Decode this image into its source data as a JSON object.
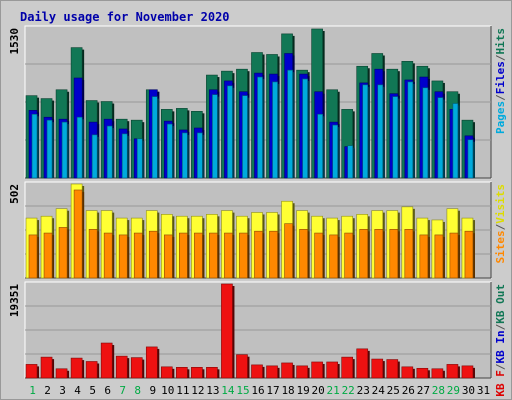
{
  "chart_data": {
    "type": "bar",
    "title": "Daily usage for November 2020",
    "categories": [
      "1",
      "2",
      "3",
      "4",
      "5",
      "6",
      "7",
      "8",
      "9",
      "10",
      "11",
      "12",
      "13",
      "14",
      "15",
      "16",
      "17",
      "18",
      "19",
      "20",
      "21",
      "22",
      "23",
      "24",
      "25",
      "26",
      "27",
      "28",
      "29",
      "30",
      "31"
    ],
    "weekend_days": [
      "1",
      "7",
      "8",
      "14",
      "15",
      "21",
      "22",
      "28",
      "29"
    ],
    "panels": [
      {
        "name": "top",
        "scale_label": "1530",
        "ylim": [
          0,
          1530
        ],
        "right_labels": [
          {
            "text": "Pages",
            "color": "#00aadd"
          },
          {
            "text": "/",
            "color": "#555555"
          },
          {
            "text": "Files",
            "color": "#0000cc"
          },
          {
            "text": "/",
            "color": "#555555"
          },
          {
            "text": "Hits",
            "color": "#117755"
          }
        ],
        "series": [
          {
            "name": "Hits",
            "color": "#117755",
            "values": [
              840,
              810,
              900,
              1330,
              790,
              780,
              600,
              590,
              900,
              700,
              710,
              680,
              1050,
              1090,
              1110,
              1280,
              1260,
              1470,
              1100,
              1520,
              900,
              700,
              1140,
              1270,
              1110,
              1190,
              1140,
              990,
              880,
              590,
              null
            ]
          },
          {
            "name": "Files",
            "color": "#0000cc",
            "values": [
              690,
              620,
              600,
              1020,
              570,
              600,
              500,
              400,
              900,
              580,
              490,
              510,
              900,
              990,
              880,
              1070,
              1060,
              1270,
              1060,
              880,
              570,
              320,
              970,
              1110,
              860,
              1000,
              1030,
              880,
              700,
              430,
              null
            ]
          },
          {
            "name": "Pages",
            "color": "#00aadd",
            "values": [
              650,
              590,
              570,
              620,
              440,
              530,
              450,
              400,
              830,
              550,
              460,
              460,
              850,
              940,
              840,
              1030,
              980,
              1100,
              1010,
              650,
              540,
              330,
              950,
              950,
              830,
              980,
              920,
              820,
              760,
              390,
              null
            ]
          }
        ]
      },
      {
        "name": "middle",
        "scale_label": "502",
        "ylim": [
          0,
          502
        ],
        "right_labels": [
          {
            "text": "Sites",
            "color": "#ff8800"
          },
          {
            "text": "/",
            "color": "#555555"
          },
          {
            "text": "Visits",
            "color": "#dddd00"
          }
        ],
        "series": [
          {
            "name": "Visits",
            "color": "#ffff33",
            "values": [
              320,
              330,
              370,
              502,
              360,
              360,
              320,
              320,
              360,
              340,
              330,
              330,
              340,
              360,
              330,
              350,
              350,
              410,
              360,
              330,
              320,
              330,
              340,
              360,
              360,
              380,
              320,
              310,
              370,
              320,
              null
            ]
          },
          {
            "name": "Sites",
            "color": "#ff8800",
            "values": [
              230,
              240,
              270,
              470,
              260,
              240,
              230,
              240,
              250,
              230,
              240,
              240,
              240,
              240,
              240,
              250,
              250,
              290,
              260,
              240,
              230,
              240,
              260,
              260,
              260,
              260,
              230,
              230,
              240,
              250,
              null
            ]
          }
        ]
      },
      {
        "name": "bottom",
        "scale_label": "19351",
        "ylim": [
          0,
          19351
        ],
        "right_labels": [
          {
            "text": "KB F",
            "color": "#dd0000"
          },
          {
            "text": "/",
            "color": "#555555"
          },
          {
            "text": "KB In",
            "color": "#0000cc"
          },
          {
            "text": "/",
            "color": "#555555"
          },
          {
            "text": "KB Out",
            "color": "#117755"
          }
        ],
        "series": [
          {
            "name": "KB F",
            "color": "#ee1111",
            "values": [
              2800,
              4300,
              1900,
              4100,
              3400,
              7200,
              4500,
              4200,
              6400,
              2300,
              2200,
              2200,
              2200,
              19351,
              4800,
              2700,
              2500,
              3100,
              2500,
              3300,
              3300,
              4300,
              6000,
              3900,
              3800,
              2300,
              2000,
              1900,
              2800,
              2500,
              null
            ]
          }
        ]
      }
    ]
  }
}
